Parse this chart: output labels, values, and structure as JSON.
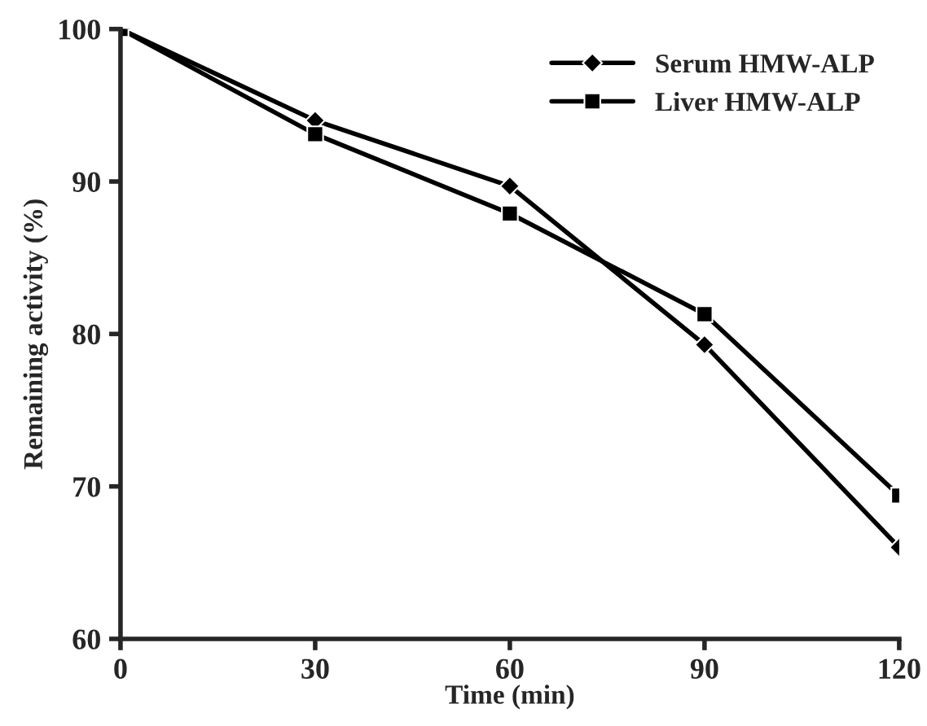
{
  "chart_data": {
    "type": "line",
    "xlabel": "Time (min)",
    "ylabel": "Remaining activity (%)",
    "x": [
      0,
      30,
      60,
      90,
      120
    ],
    "series": [
      {
        "name": "Serum HMW-ALP",
        "color": "#000000",
        "marker": "diamond",
        "values": [
          100,
          94.0,
          89.7,
          79.3,
          66.0
        ]
      },
      {
        "name": "Liver HMW-ALP",
        "color": "#000000",
        "marker": "square",
        "values": [
          100,
          93.1,
          87.9,
          81.3,
          69.4
        ]
      }
    ],
    "xlim": [
      0,
      120
    ],
    "xticks": [
      0,
      30,
      60,
      90,
      120
    ],
    "ylim": [
      60,
      100
    ],
    "yticks": [
      60,
      70,
      80,
      90,
      100
    ],
    "grid": false,
    "legend": "top right",
    "line_style": "solid"
  }
}
